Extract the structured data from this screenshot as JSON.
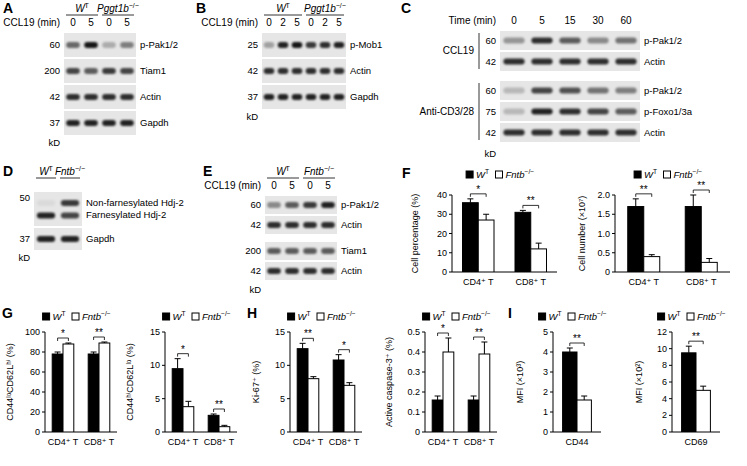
{
  "blots": [
    {
      "label": "A",
      "groups": [
        "WT",
        "Pggt1b−/−"
      ],
      "condition": "CCL19 (min)",
      "lanes": [
        0,
        5,
        0,
        5
      ],
      "unit": "kD",
      "sections": [
        {
          "rows": [
            {
              "marker": 60,
              "protein": "p-Pak1/2",
              "intensity": [
                0.55,
                0.9,
                0.25,
                0.45
              ]
            },
            {
              "marker": 200,
              "protein": "Tiam1",
              "intensity": [
                0.7,
                0.6,
                0.75,
                0.7
              ]
            },
            {
              "marker": 42,
              "protein": "Actin",
              "intensity": [
                0.8,
                0.8,
                0.8,
                0.8
              ]
            },
            {
              "marker": 37,
              "protein": "Gapdh",
              "intensity": [
                0.85,
                0.85,
                0.85,
                0.85
              ]
            }
          ]
        }
      ]
    },
    {
      "label": "B",
      "groups": [
        "WT",
        "Pggt1b−/−"
      ],
      "condition": "CCL19 (min)",
      "lanes": [
        0,
        2,
        5,
        0,
        2,
        5
      ],
      "unit": "kD",
      "sections": [
        {
          "rows": [
            {
              "marker": 25,
              "protein": "p-Mob1",
              "intensity": [
                0.3,
                0.85,
                0.9,
                0.75,
                0.8,
                0.85
              ]
            },
            {
              "marker": 42,
              "protein": "Actin",
              "intensity": [
                0.8,
                0.8,
                0.8,
                0.8,
                0.8,
                0.8
              ]
            },
            {
              "marker": 37,
              "protein": "Gapdh",
              "intensity": [
                0.85,
                0.85,
                0.85,
                0.85,
                0.85,
                0.85
              ]
            }
          ]
        }
      ]
    },
    {
      "label": "C",
      "condition": "Time (min)",
      "lanes": [
        0,
        5,
        15,
        30,
        60
      ],
      "unit": "kD",
      "sections": [
        {
          "treatment": "CCL19",
          "rows": [
            {
              "marker": 60,
              "protein": "p-Pak1/2",
              "intensity": [
                0.35,
                0.8,
                0.6,
                0.4,
                0.5
              ]
            },
            {
              "marker": 42,
              "protein": "Actin",
              "intensity": [
                0.8,
                0.8,
                0.8,
                0.8,
                0.8
              ]
            }
          ]
        },
        {
          "treatment": "Anti-CD3/28",
          "rows": [
            {
              "marker": 60,
              "protein": "p-Pak1/2",
              "intensity": [
                0.2,
                0.7,
                0.65,
                0.5,
                0.45
              ]
            },
            {
              "marker": 75,
              "protein": "p-Foxo1/3a",
              "intensity": [
                0.2,
                0.85,
                0.8,
                0.7,
                0.6
              ]
            },
            {
              "marker": 42,
              "protein": "Actin",
              "intensity": [
                0.8,
                0.8,
                0.8,
                0.8,
                0.8
              ]
            }
          ]
        }
      ]
    },
    {
      "label": "D",
      "groups": [
        "WT",
        "Fntb−/−"
      ],
      "unit": "kD",
      "sections": [
        {
          "rows": [
            {
              "marker": 50,
              "proteins": [
                "Non-farnesylated Hdj-2",
                "Farnesylated Hdj-2"
              ],
              "intensity": [
                [
                  0.05,
                  0.75
                ],
                [
                  0.85,
                  0.7
                ]
              ]
            },
            {
              "marker": 37,
              "protein": "Gapdh",
              "intensity": [
                0.85,
                0.85
              ]
            }
          ]
        }
      ]
    },
    {
      "label": "E",
      "groups": [
        "WT",
        "Fntb−/−"
      ],
      "condition": "CCL19 (min)",
      "lanes": [
        0,
        5,
        0,
        5
      ],
      "unit": "kD",
      "sections": [
        {
          "rows": [
            {
              "marker": 60,
              "protein": "p-Pak1/2",
              "intensity": [
                0.4,
                0.6,
                0.75,
                0.85
              ]
            },
            {
              "marker": 42,
              "protein": "Actin",
              "intensity": [
                0.8,
                0.8,
                0.8,
                0.8
              ]
            }
          ]
        },
        {
          "rows": [
            {
              "marker": 200,
              "protein": "Tiam1",
              "intensity": [
                0.6,
                0.6,
                0.6,
                0.6
              ]
            },
            {
              "marker": 42,
              "protein": "Actin",
              "intensity": [
                0.8,
                0.8,
                0.8,
                0.8
              ]
            }
          ]
        }
      ]
    }
  ],
  "chart_panel_labels": [
    "F",
    "G",
    "H",
    "I"
  ],
  "chart_data": [
    {
      "type": "bar",
      "y_label": "Cell percentage (%)",
      "categories": [
        "CD4⁺ T",
        "CD8⁺ T"
      ],
      "series": [
        {
          "name": "WT",
          "color": "#000000",
          "values": [
            36,
            31
          ],
          "errors": [
            2,
            1
          ]
        },
        {
          "name": "Fntb−/−",
          "color": "#ffffff",
          "values": [
            27,
            12
          ],
          "errors": [
            3,
            3
          ]
        }
      ],
      "ylim": [
        0,
        40
      ],
      "yticks": [
        0,
        10,
        20,
        30,
        40
      ],
      "significance": [
        "*",
        "**"
      ],
      "legend": "top"
    },
    {
      "type": "bar",
      "y_label": "Cell number (×10⁷)",
      "categories": [
        "CD4⁺ T",
        "CD8⁺ T"
      ],
      "series": [
        {
          "name": "WT",
          "color": "#000000",
          "values": [
            1.7,
            1.7
          ],
          "errors": [
            0.2,
            0.3
          ]
        },
        {
          "name": "Fntb−/−",
          "color": "#ffffff",
          "values": [
            0.4,
            0.25
          ],
          "errors": [
            0.05,
            0.1
          ]
        }
      ],
      "ylim": [
        0,
        2
      ],
      "yticks": [
        0,
        0.5,
        {
          "value": 1,
          "label": "1.0"
        },
        1.5,
        {
          "value": 2,
          "label": "2.0"
        }
      ],
      "significance": [
        "**",
        "**"
      ],
      "legend": "top"
    },
    {
      "type": "bar",
      "y_label": "CD44ˡᵒCD62Lʰⁱ (%)",
      "categories": [
        "CD4⁺ T",
        "CD8⁺ T"
      ],
      "series": [
        {
          "name": "WT",
          "color": "#000000",
          "values": [
            78,
            78
          ],
          "errors": [
            2,
            2
          ]
        },
        {
          "name": "Fntb−/−",
          "color": "#ffffff",
          "values": [
            88,
            89
          ],
          "errors": [
            1,
            1
          ]
        }
      ],
      "ylim": [
        0,
        100
      ],
      "yticks": [
        0,
        20,
        40,
        60,
        80,
        100
      ],
      "significance": [
        "*",
        "**"
      ],
      "legend": "top"
    },
    {
      "type": "bar",
      "y_label": "CD44ʰⁱCD62Lˡᵒ (%)",
      "categories": [
        "CD4⁺ T",
        "CD8⁺ T"
      ],
      "series": [
        {
          "name": "WT",
          "color": "#000000",
          "values": [
            9.5,
            2.5
          ],
          "errors": [
            1.5,
            0.2
          ]
        },
        {
          "name": "Fntb−/−",
          "color": "#ffffff",
          "values": [
            3.8,
            0.8
          ],
          "errors": [
            0.8,
            0.2
          ]
        }
      ],
      "ylim": [
        0,
        15
      ],
      "yticks": [
        0,
        5,
        10,
        15
      ],
      "significance": [
        "*",
        "**"
      ],
      "legend": "top"
    },
    {
      "type": "bar",
      "y_label": "Ki-67⁺ (%)",
      "categories": [
        "CD4⁺ T",
        "CD8⁺ T"
      ],
      "series": [
        {
          "name": "WT",
          "color": "#000000",
          "values": [
            12.5,
            10.8
          ],
          "errors": [
            0.8,
            0.8
          ]
        },
        {
          "name": "Fntb−/−",
          "color": "#ffffff",
          "values": [
            8,
            7
          ],
          "errors": [
            0.3,
            0.4
          ]
        }
      ],
      "ylim": [
        0,
        15
      ],
      "yticks": [
        0,
        5,
        10,
        15
      ],
      "significance": [
        "**",
        "*"
      ],
      "legend": "top"
    },
    {
      "type": "bar",
      "y_label": "Active caspase-3⁺ (%)",
      "categories": [
        "CD4⁺ T",
        "CD8⁺ T"
      ],
      "series": [
        {
          "name": "WT",
          "color": "#000000",
          "values": [
            0.16,
            0.16
          ],
          "errors": [
            0.02,
            0.02
          ]
        },
        {
          "name": "Fntb−/−",
          "color": "#ffffff",
          "values": [
            0.4,
            0.39
          ],
          "errors": [
            0.07,
            0.06
          ]
        }
      ],
      "ylim": [
        0,
        0.5
      ],
      "yticks": [
        0,
        0.1,
        0.2,
        0.3,
        0.4,
        0.5
      ],
      "significance": [
        "*",
        "**"
      ],
      "legend": "top"
    },
    {
      "type": "bar",
      "y_label": "MFI (×10³)",
      "categories": [
        "CD44"
      ],
      "series": [
        {
          "name": "WT",
          "color": "#000000",
          "values": [
            4.0
          ],
          "errors": [
            0.2
          ]
        },
        {
          "name": "Fntb−/−",
          "color": "#ffffff",
          "values": [
            1.6
          ],
          "errors": [
            0.2
          ]
        }
      ],
      "ylim": [
        0,
        5
      ],
      "yticks": [
        0,
        1,
        2,
        3,
        4,
        5
      ],
      "significance": [
        "**"
      ],
      "legend": "top"
    },
    {
      "type": "bar",
      "y_label": "MFI (×10²)",
      "categories": [
        "CD69"
      ],
      "series": [
        {
          "name": "WT",
          "color": "#000000",
          "values": [
            9.5
          ],
          "errors": [
            0.8
          ]
        },
        {
          "name": "Fntb−/−",
          "color": "#ffffff",
          "values": [
            5.0
          ],
          "errors": [
            0.5
          ]
        }
      ],
      "ylim": [
        0,
        12
      ],
      "yticks": [
        0,
        2,
        4,
        6,
        8,
        10,
        12
      ],
      "significance": [
        "**"
      ],
      "legend": "top"
    }
  ]
}
